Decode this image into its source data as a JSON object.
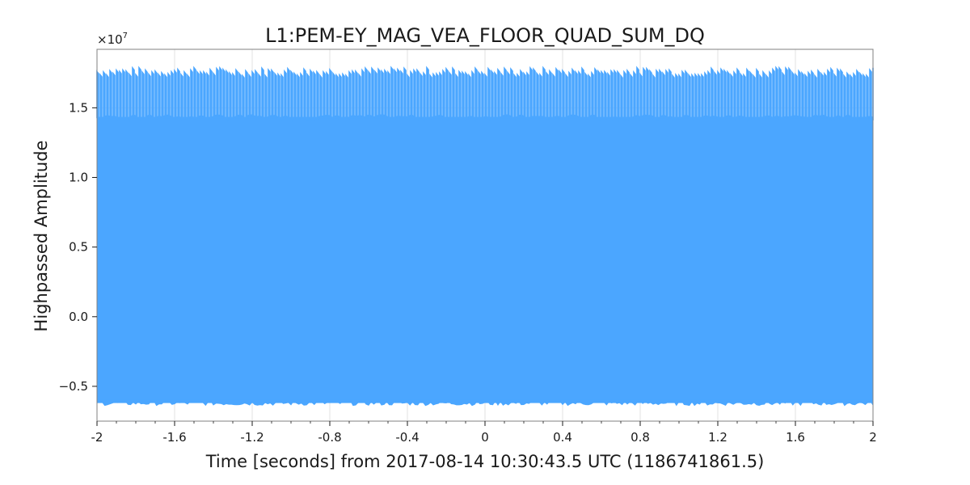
{
  "chart_data": {
    "type": "area",
    "title": "L1:PEM-EY_MAG_VEA_FLOOR_QUAD_SUM_DQ",
    "xlabel": "Time [seconds] from 2017-08-14 10:30:43.5 UTC (1186741861.5)",
    "ylabel": "Highpassed Amplitude",
    "y_multiplier": {
      "base": "×10",
      "exponent": "7"
    },
    "xlim": [
      -2,
      2
    ],
    "ylim": [
      -0.75,
      1.92
    ],
    "x_ticks": [
      {
        "value": -2,
        "label": "-2"
      },
      {
        "value": -1.6,
        "label": "-1.6"
      },
      {
        "value": -1.2,
        "label": "-1.2"
      },
      {
        "value": -0.8,
        "label": "-0.8"
      },
      {
        "value": -0.4,
        "label": "-0.4"
      },
      {
        "value": 0,
        "label": "0"
      },
      {
        "value": 0.4,
        "label": "0.4"
      },
      {
        "value": 0.8,
        "label": "0.8"
      },
      {
        "value": 1.2,
        "label": "1.2"
      },
      {
        "value": 1.6,
        "label": "1.6"
      },
      {
        "value": 2,
        "label": "2"
      }
    ],
    "y_ticks": [
      {
        "value": -0.5,
        "label": "−0.5"
      },
      {
        "value": 0.0,
        "label": "0.0"
      },
      {
        "value": 0.5,
        "label": "0.5"
      },
      {
        "value": 1.0,
        "label": "1.0"
      },
      {
        "value": 1.5,
        "label": "1.5"
      }
    ],
    "grid": true,
    "series": [
      {
        "envelope_upper_peak": 1.76,
        "envelope_upper_base": 1.43,
        "envelope_lower": -0.62,
        "spike_count": 240
      }
    ]
  },
  "colors": {
    "series_fill": "#4ba6ff",
    "grid": "#e0e0e0",
    "axes": "#808080",
    "text": "#1a1a1a",
    "background": "#ffffff"
  }
}
